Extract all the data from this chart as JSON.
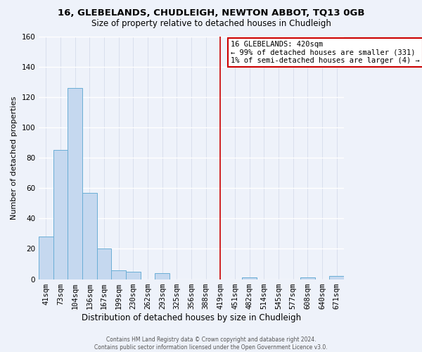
{
  "title1": "16, GLEBELANDS, CHUDLEIGH, NEWTON ABBOT, TQ13 0GB",
  "title2": "Size of property relative to detached houses in Chudleigh",
  "xlabel": "Distribution of detached houses by size in Chudleigh",
  "ylabel": "Number of detached properties",
  "bar_labels": [
    "41sqm",
    "73sqm",
    "104sqm",
    "136sqm",
    "167sqm",
    "199sqm",
    "230sqm",
    "262sqm",
    "293sqm",
    "325sqm",
    "356sqm",
    "388sqm",
    "419sqm",
    "451sqm",
    "482sqm",
    "514sqm",
    "545sqm",
    "577sqm",
    "608sqm",
    "640sqm",
    "671sqm"
  ],
  "bar_values": [
    28,
    85,
    126,
    57,
    20,
    6,
    5,
    0,
    4,
    0,
    0,
    0,
    0,
    0,
    1,
    0,
    0,
    0,
    1,
    0,
    2
  ],
  "bar_color": "#c5d8ef",
  "bar_edge_color": "#6aaed6",
  "vline_index": 12,
  "vline_color": "#cc0000",
  "ylim": [
    0,
    160
  ],
  "yticks": [
    0,
    20,
    40,
    60,
    80,
    100,
    120,
    140,
    160
  ],
  "annotation_title": "16 GLEBELANDS: 420sqm",
  "annotation_line1": "← 99% of detached houses are smaller (331)",
  "annotation_line2": "1% of semi-detached houses are larger (4) →",
  "footer1": "Contains HM Land Registry data © Crown copyright and database right 2024.",
  "footer2": "Contains public sector information licensed under the Open Government Licence v3.0.",
  "bg_color": "#eef2fa",
  "grid_color": "#d0d8e8",
  "title1_fontsize": 9.5,
  "title2_fontsize": 8.5,
  "ylabel_fontsize": 8,
  "xlabel_fontsize": 8.5,
  "tick_fontsize": 7.5,
  "ann_fontsize": 7.5,
  "footer_fontsize": 5.5
}
